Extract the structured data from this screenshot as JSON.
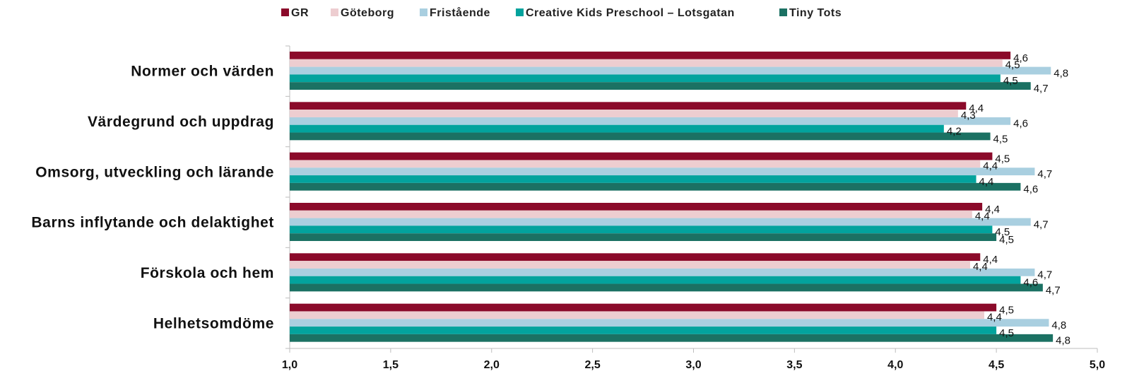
{
  "chart_data": {
    "type": "bar",
    "orientation": "horizontal",
    "categories": [
      "Normer och värden",
      "Värdegrund och uppdrag",
      "Omsorg, utveckling och lärande",
      "Barns inflytande och delaktighet",
      "Förskola och hem",
      "Helhetsomdöme"
    ],
    "series": [
      {
        "name": "GR",
        "color": "#8b0a2a",
        "values": [
          4.57,
          4.35,
          4.48,
          4.43,
          4.42,
          4.5
        ],
        "labels": [
          "4,6",
          "4,4",
          "4,5",
          "4,4",
          "4,4",
          "4,5"
        ]
      },
      {
        "name": "Göteborg",
        "color": "#edcdd0",
        "values": [
          4.53,
          4.31,
          4.42,
          4.38,
          4.37,
          4.44
        ],
        "labels": [
          "4,5",
          "4,3",
          "4,4",
          "4,4",
          "4,4",
          "4,4"
        ]
      },
      {
        "name": "Fristående",
        "color": "#a9cfe0",
        "values": [
          4.77,
          4.57,
          4.69,
          4.67,
          4.69,
          4.76
        ],
        "labels": [
          "4,8",
          "4,6",
          "4,7",
          "4,7",
          "4,7",
          "4,8"
        ]
      },
      {
        "name": "Creative Kids Preschool – Lotsgatan",
        "color": "#03a39d",
        "values": [
          4.52,
          4.24,
          4.4,
          4.48,
          4.62,
          4.5
        ],
        "labels": [
          "4,5",
          "4,2",
          "4,4",
          "4,5",
          "4,6",
          "4,5"
        ]
      },
      {
        "name": "Tiny Tots",
        "color": "#1b7163",
        "values": [
          4.67,
          4.47,
          4.62,
          4.5,
          4.73,
          4.78
        ],
        "labels": [
          "4,7",
          "4,5",
          "4,6",
          "4,5",
          "4,7",
          "4,8"
        ]
      }
    ],
    "xlim": [
      1.0,
      5.0
    ],
    "xticks": [
      "1,0",
      "1,5",
      "2,0",
      "2,5",
      "3,0",
      "3,5",
      "4,0",
      "4,5",
      "5,0"
    ],
    "xtick_values": [
      1.0,
      1.5,
      2.0,
      2.5,
      3.0,
      3.5,
      4.0,
      4.5,
      5.0
    ],
    "legend_position": "top",
    "grid": false
  }
}
